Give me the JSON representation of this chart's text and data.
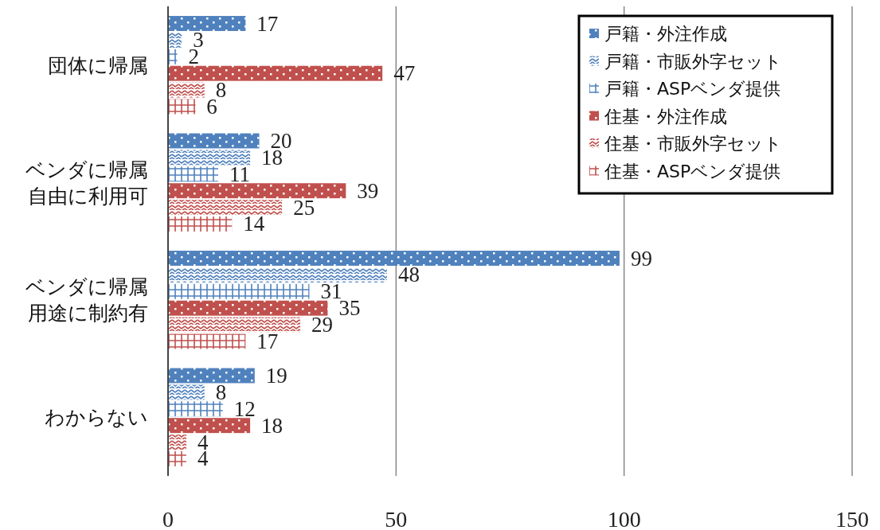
{
  "chart_data": {
    "type": "bar",
    "orientation": "horizontal",
    "categories": [
      "団体に帰属",
      "ベンダに帰属自由に利用可",
      "ベンダに帰属用途に制約有",
      "わからない"
    ],
    "series": [
      {
        "name": "戸籍・外注作成",
        "color": "#4f81bd",
        "values": [
          17,
          20,
          99,
          19
        ]
      },
      {
        "name": "戸籍・市販外字セット",
        "color": "#4f81bd",
        "values": [
          3,
          18,
          48,
          8
        ]
      },
      {
        "name": "戸籍・ASPベンダ提供",
        "color": "#4f81bd",
        "values": [
          2,
          11,
          31,
          12
        ]
      },
      {
        "name": "住基・外注作成",
        "color": "#c0504d",
        "values": [
          47,
          39,
          35,
          18
        ]
      },
      {
        "name": "住基・市販外字セット",
        "color": "#c0504d",
        "values": [
          8,
          25,
          29,
          4
        ]
      },
      {
        "name": "住基・ASPベンダ提供",
        "color": "#c0504d",
        "values": [
          6,
          14,
          17,
          4
        ]
      }
    ],
    "xlim": [
      0,
      150
    ],
    "xticks": [
      0,
      50,
      100,
      150
    ],
    "grid": "x",
    "legend": "top right",
    "data_labels": true
  }
}
